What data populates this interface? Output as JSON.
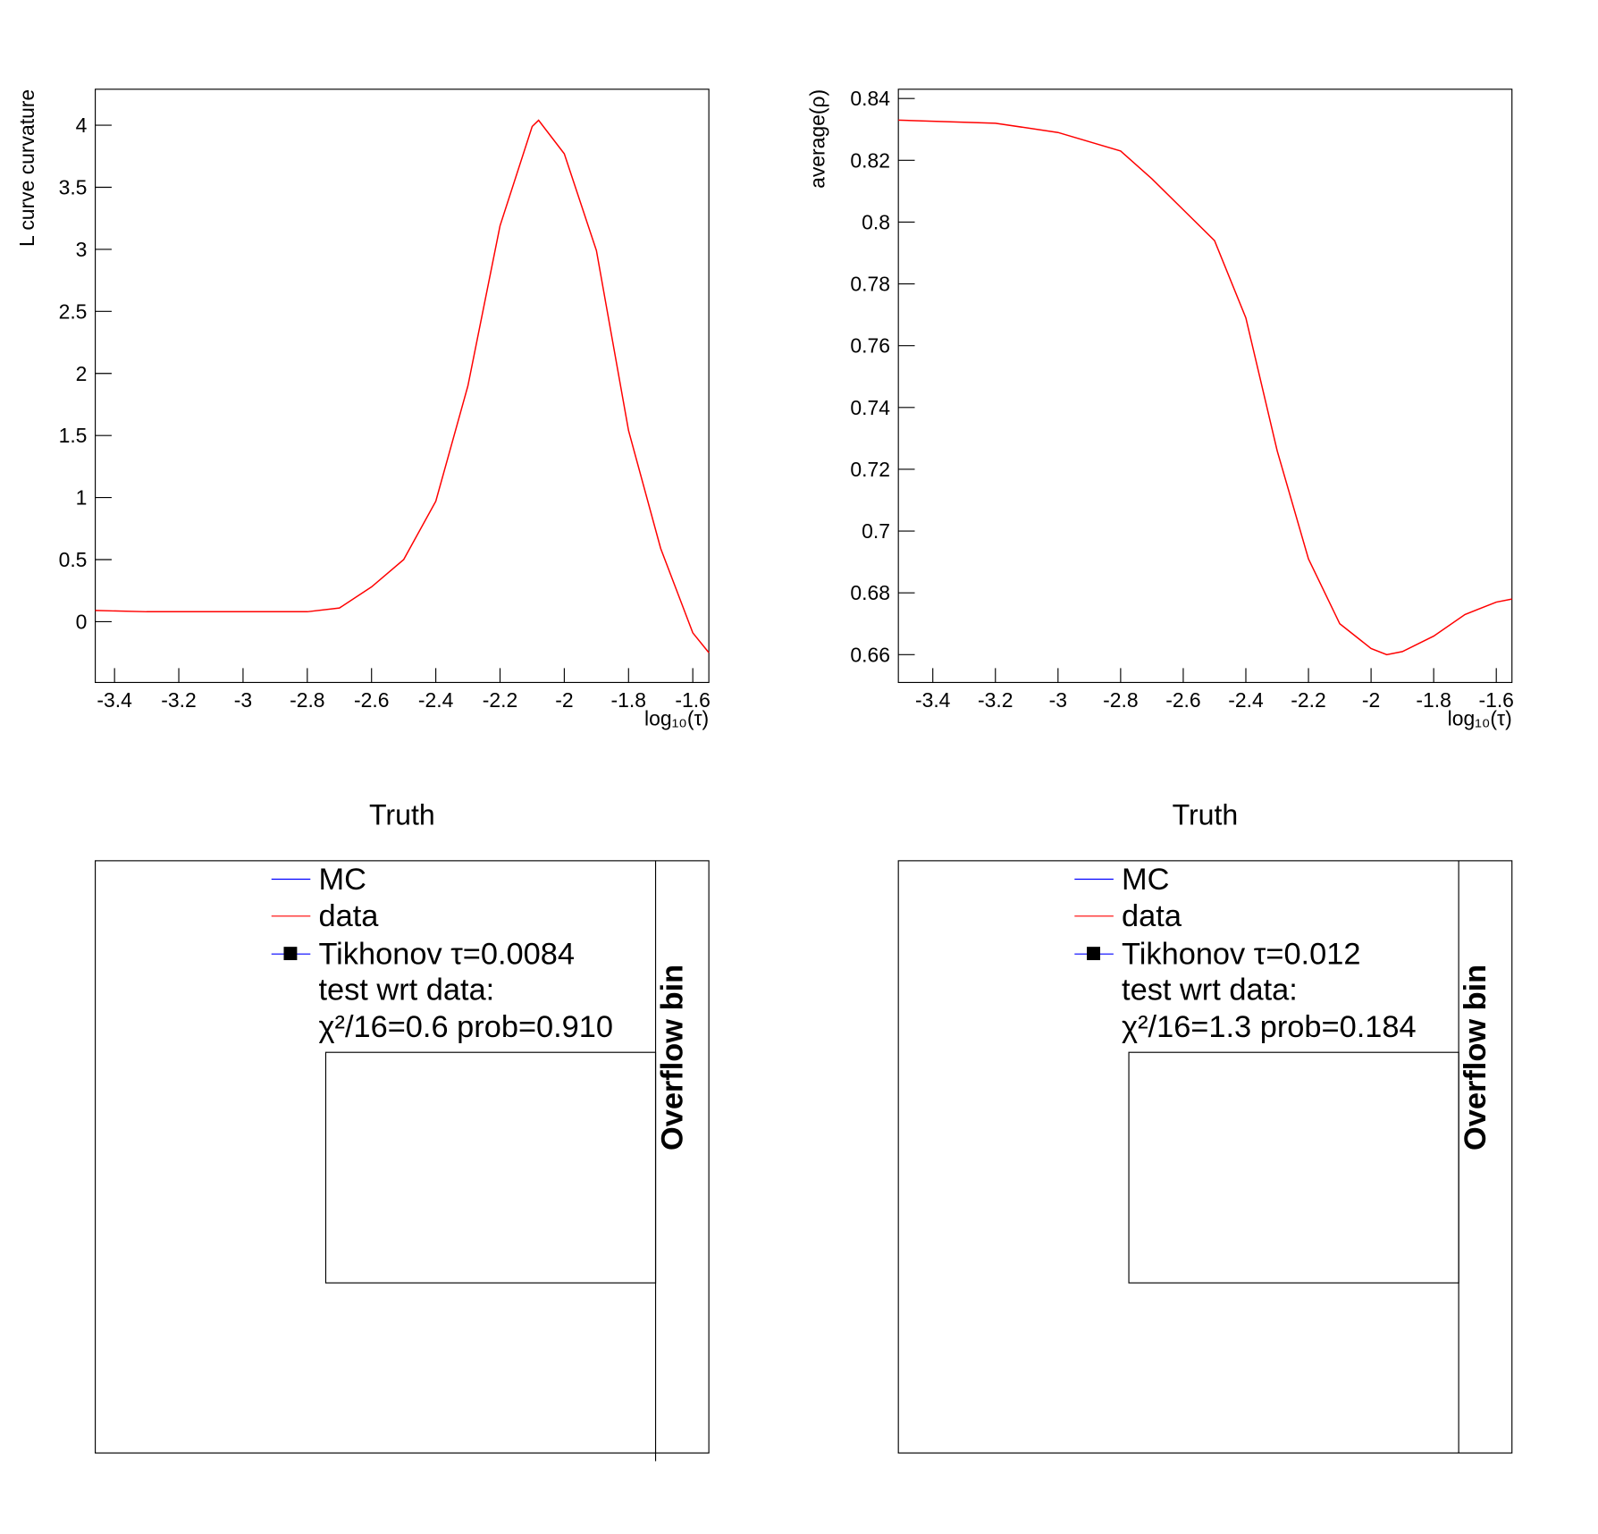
{
  "chart_data": [
    {
      "type": "line",
      "y_label": "L curve curvature",
      "x_label": "log₁₀(τ)",
      "x": [
        -3.46,
        -3.3,
        -3.0,
        -2.8,
        -2.7,
        -2.6,
        -2.5,
        -2.4,
        -2.3,
        -2.2,
        -2.1,
        -2.08,
        -2.0,
        -1.9,
        -1.8,
        -1.7,
        -1.6,
        -1.55
      ],
      "values": [
        0.09,
        0.08,
        0.08,
        0.08,
        0.11,
        0.28,
        0.5,
        0.97,
        1.9,
        3.19,
        3.99,
        4.04,
        3.77,
        2.99,
        1.54,
        0.59,
        -0.09,
        -0.25
      ],
      "color": "#ff0000",
      "xlim": [
        -3.46,
        -1.55
      ],
      "xticks": [
        -3.4,
        -3.2,
        -3,
        -2.8,
        -2.6,
        -2.4,
        -2.2,
        -2,
        -1.8,
        -1.6
      ],
      "ylim": [
        -0.49,
        4.29
      ],
      "yticks": [
        0,
        0.5,
        1,
        1.5,
        2,
        2.5,
        3,
        3.5,
        4
      ]
    },
    {
      "type": "line",
      "y_label": "average(ρ)",
      "x_label": "log₁₀(τ)",
      "x": [
        -3.51,
        -3.2,
        -3.0,
        -2.8,
        -2.7,
        -2.6,
        -2.5,
        -2.4,
        -2.3,
        -2.2,
        -2.1,
        -2.0,
        -1.95,
        -1.9,
        -1.8,
        -1.7,
        -1.6,
        -1.55
      ],
      "values": [
        0.833,
        0.832,
        0.829,
        0.823,
        0.814,
        0.804,
        0.794,
        0.769,
        0.726,
        0.691,
        0.67,
        0.662,
        0.66,
        0.661,
        0.666,
        0.673,
        0.677,
        0.678
      ],
      "color": "#ff0000",
      "xlim": [
        -3.51,
        -1.55
      ],
      "xticks": [
        -3.4,
        -3.2,
        -3,
        -2.8,
        -2.6,
        -2.4,
        -2.2,
        -2,
        -1.8,
        -1.6
      ],
      "ylim": [
        0.651,
        0.843
      ],
      "yticks": [
        0.66,
        0.68,
        0.7,
        0.72,
        0.74,
        0.76,
        0.78,
        0.8,
        0.82,
        0.84
      ]
    },
    {
      "type": "panel",
      "title": "Truth",
      "side_label": "Overflow bin",
      "legend": [
        {
          "label": "MC",
          "color": "#0000ff",
          "marker": "line"
        },
        {
          "label": "data",
          "color": "#ff0000",
          "marker": "line"
        },
        {
          "label": "Tikhonov τ=0.0084",
          "color": "#0000ff",
          "marker": "square"
        },
        {
          "label": "test wrt data:",
          "marker": "none"
        },
        {
          "label": "χ²/16=0.6 prob=0.910",
          "marker": "none"
        }
      ]
    },
    {
      "type": "panel",
      "title": "Truth",
      "side_label": "Overflow bin",
      "legend": [
        {
          "label": "MC",
          "color": "#0000ff",
          "marker": "line"
        },
        {
          "label": "data",
          "color": "#ff0000",
          "marker": "line"
        },
        {
          "label": "Tikhonov τ=0.012",
          "color": "#0000ff",
          "marker": "square"
        },
        {
          "label": "test wrt data:",
          "marker": "none"
        },
        {
          "label": "χ²/16=1.3 prob=0.184",
          "marker": "none"
        }
      ]
    }
  ]
}
